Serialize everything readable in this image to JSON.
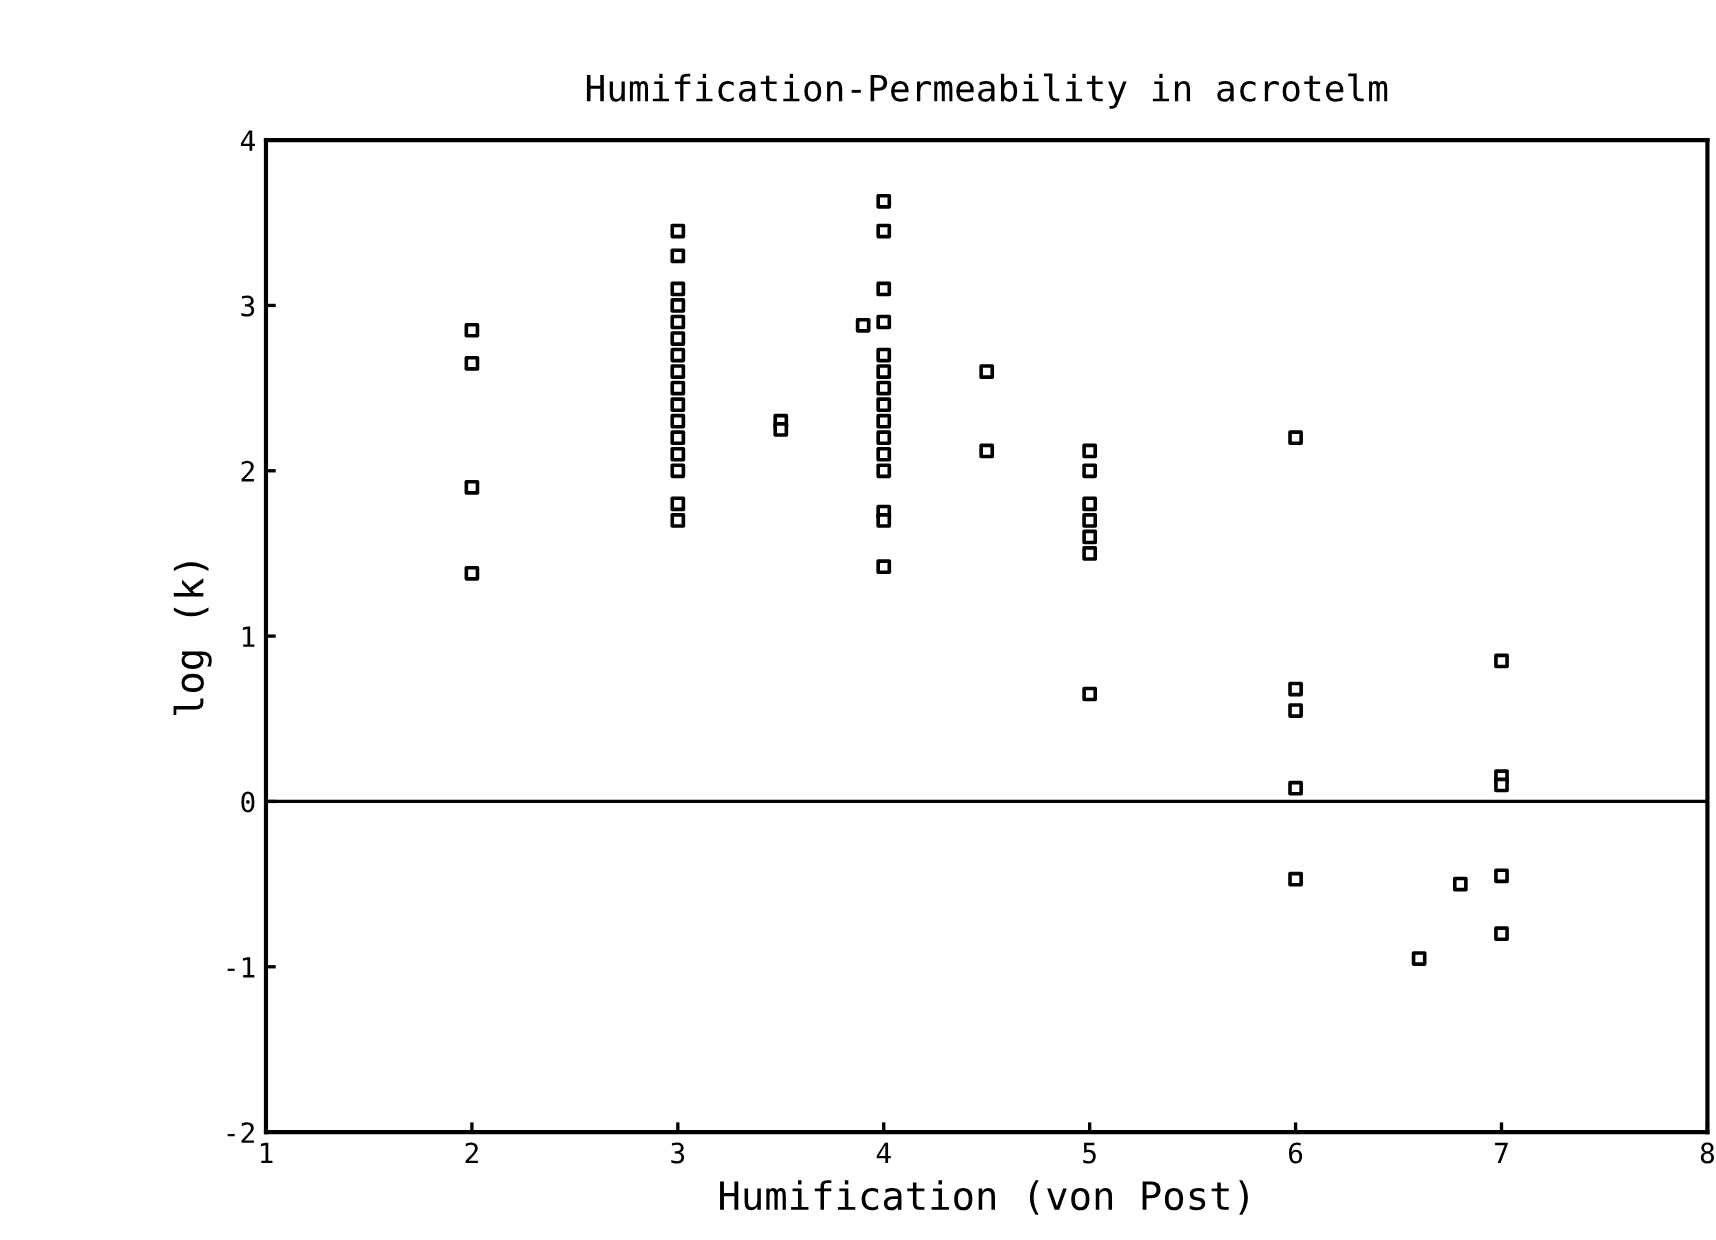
{
  "chart_data": {
    "type": "scatter",
    "title": "Humification-Permeability in acrotelm",
    "xlabel": "Humification (von Post)",
    "ylabel": "log (k)",
    "x": [
      2,
      2,
      2,
      2,
      3,
      3,
      3,
      3,
      3,
      3,
      3,
      3,
      3,
      3,
      3,
      3,
      3,
      3,
      3,
      3,
      3.5,
      3.5,
      3.9,
      4,
      4,
      4,
      4,
      4,
      4,
      4,
      4,
      4,
      4,
      4,
      4,
      4,
      4,
      4,
      4.5,
      4.5,
      5,
      5,
      5,
      5,
      5,
      5,
      5,
      6,
      6,
      6,
      6,
      6,
      6.6,
      6.8,
      7,
      7,
      7,
      7,
      7
    ],
    "values": [
      2.85,
      2.65,
      1.9,
      1.38,
      3.45,
      3.3,
      3.1,
      3.0,
      2.9,
      2.8,
      2.7,
      2.6,
      2.5,
      2.4,
      2.3,
      2.2,
      2.1,
      2.0,
      1.8,
      1.7,
      2.3,
      2.25,
      2.88,
      3.63,
      3.45,
      3.1,
      2.9,
      2.7,
      2.6,
      2.5,
      2.4,
      2.3,
      2.2,
      2.1,
      2.0,
      1.75,
      1.7,
      1.42,
      2.6,
      2.12,
      2.12,
      2.0,
      1.8,
      1.7,
      1.6,
      1.5,
      0.65,
      2.2,
      0.68,
      0.55,
      0.08,
      -0.47,
      -0.95,
      -0.5,
      0.85,
      0.15,
      0.1,
      -0.45,
      -0.8
    ],
    "color": "#000000",
    "marker": "square",
    "xlim": [
      1,
      8
    ],
    "xticks": [
      1,
      2,
      3,
      4,
      5,
      6,
      7,
      8
    ],
    "ylim": [
      -2,
      4
    ],
    "yticks": [
      -2,
      -1,
      0,
      1,
      2,
      3,
      4
    ],
    "ref_lines": [
      {
        "axis": "y",
        "value": 0,
        "color": "#000000",
        "line_style": "solid"
      }
    ],
    "grid": false,
    "legend": false
  }
}
